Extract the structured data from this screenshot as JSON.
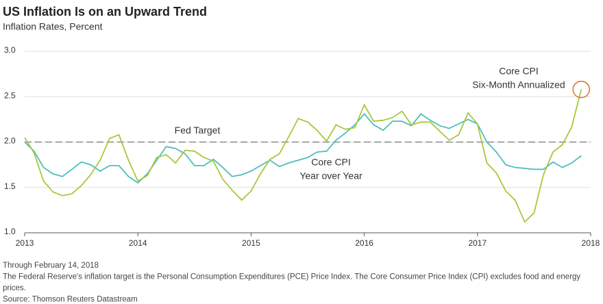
{
  "chart_data": {
    "type": "line",
    "title": "US Inflation Is on an Upward Trend",
    "subtitle": "Inflation Rates, Percent",
    "x": [
      2013,
      2013.083,
      2013.167,
      2013.25,
      2013.333,
      2013.417,
      2013.5,
      2013.583,
      2013.667,
      2013.75,
      2013.833,
      2013.917,
      2014,
      2014.083,
      2014.167,
      2014.25,
      2014.333,
      2014.417,
      2014.5,
      2014.583,
      2014.667,
      2014.75,
      2014.833,
      2014.917,
      2015,
      2015.083,
      2015.167,
      2015.25,
      2015.333,
      2015.417,
      2015.5,
      2015.583,
      2015.667,
      2015.75,
      2015.833,
      2015.917,
      2016,
      2016.083,
      2016.167,
      2016.25,
      2016.333,
      2016.417,
      2016.5,
      2016.583,
      2016.667,
      2016.75,
      2016.833,
      2016.917,
      2017,
      2017.083,
      2017.167,
      2017.25,
      2017.333,
      2017.417,
      2017.5,
      2017.583,
      2017.667,
      2017.75,
      2017.833,
      2017.917
    ],
    "series": [
      {
        "label": [
          "Core CPI",
          "Year over Year"
        ],
        "color": "#4dbdbd",
        "values": [
          2.0,
          1.9,
          1.72,
          1.65,
          1.62,
          1.7,
          1.78,
          1.75,
          1.68,
          1.74,
          1.74,
          1.62,
          1.55,
          1.65,
          1.8,
          1.95,
          1.93,
          1.87,
          1.74,
          1.74,
          1.81,
          1.72,
          1.62,
          1.64,
          1.68,
          1.74,
          1.8,
          1.73,
          1.77,
          1.8,
          1.83,
          1.89,
          1.9,
          2.02,
          2.1,
          2.19,
          2.31,
          2.19,
          2.13,
          2.23,
          2.23,
          2.18,
          2.31,
          2.24,
          2.18,
          2.15,
          2.2,
          2.25,
          2.2,
          2.0,
          1.89,
          1.75,
          1.72,
          1.71,
          1.7,
          1.7,
          1.78,
          1.72,
          1.77,
          1.85
        ]
      },
      {
        "label": [
          "Core CPI",
          "Six-Month Annualized"
        ],
        "color": "#a8c83a",
        "highlight_last": true,
        "highlight_color": "#e07030",
        "values": [
          2.05,
          1.88,
          1.57,
          1.45,
          1.41,
          1.43,
          1.52,
          1.64,
          1.8,
          2.04,
          2.08,
          1.8,
          1.57,
          1.63,
          1.83,
          1.86,
          1.77,
          1.91,
          1.9,
          1.83,
          1.79,
          1.59,
          1.47,
          1.36,
          1.46,
          1.65,
          1.81,
          1.87,
          2.06,
          2.26,
          2.22,
          2.13,
          2.01,
          2.19,
          2.14,
          2.16,
          2.41,
          2.23,
          2.24,
          2.27,
          2.34,
          2.19,
          2.22,
          2.22,
          2.12,
          2.02,
          2.08,
          2.32,
          2.2,
          1.77,
          1.66,
          1.46,
          1.36,
          1.12,
          1.22,
          1.64,
          1.89,
          1.97,
          2.17,
          2.58
        ]
      }
    ],
    "reference_line": {
      "value": 2.0,
      "label": "Fed Target",
      "color": "#888888"
    },
    "xlim": [
      2013,
      2018
    ],
    "xticks": [
      2013,
      2014,
      2015,
      2016,
      2017,
      2018
    ],
    "ylim": [
      1.0,
      3.0
    ],
    "yticks": [
      {
        "value": 1.0,
        "label": "1.0"
      },
      {
        "value": 1.5,
        "label": "1.5"
      },
      {
        "value": 2.0,
        "label": "2.0"
      },
      {
        "value": 2.5,
        "label": "2.5"
      },
      {
        "value": 3.0,
        "label": "3.0"
      }
    ],
    "grid": true,
    "notes": [
      "Through February 14, 2018",
      "The Federal Reserve's inflation target is the Personal Consumption Expenditures (PCE) Price Index. The Core Consumer Price Index (CPI) excludes food and energy",
      "prices.",
      "Source: Thomson Reuters Datastream"
    ]
  }
}
